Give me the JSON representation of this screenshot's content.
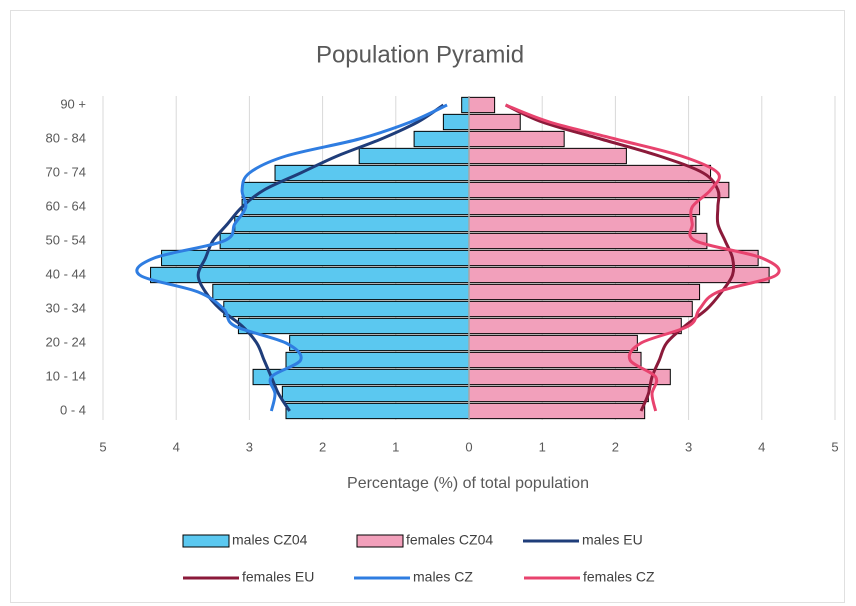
{
  "chart_data": {
    "type": "bar",
    "orientation": "horizontal",
    "title": "Population Pyramid",
    "xlabel": "Percentage (%) of total population",
    "categories": [
      "0 - 4",
      null,
      "10 - 14",
      null,
      "20 - 24",
      null,
      "30 - 34",
      null,
      "40 - 44",
      null,
      "50 - 54",
      null,
      "60 - 64",
      null,
      "70 - 74",
      null,
      "80 - 84",
      null,
      "90 +"
    ],
    "xlim": [
      -5,
      5
    ],
    "xticks": [
      {
        "value": -5,
        "label": "5"
      },
      {
        "value": -4,
        "label": "4"
      },
      {
        "value": -3,
        "label": "3"
      },
      {
        "value": -2,
        "label": "2"
      },
      {
        "value": -1,
        "label": "1"
      },
      0,
      1,
      2,
      3,
      4,
      5
    ],
    "grid": true,
    "legend": "bottom",
    "series": [
      {
        "name": "males CZ04",
        "type": "bar",
        "color": "#5bc8f0",
        "edgecolor": "#000000",
        "values": [
          -2.5,
          -2.55,
          -2.95,
          -2.5,
          -2.45,
          -3.15,
          -3.35,
          -3.5,
          -4.35,
          -4.2,
          -3.4,
          -3.2,
          -3.1,
          -3.1,
          -2.65,
          -1.5,
          -0.75,
          -0.35,
          -0.1
        ]
      },
      {
        "name": "females CZ04",
        "type": "bar",
        "color": "#f2a0bb",
        "edgecolor": "#000000",
        "values": [
          2.4,
          2.45,
          2.75,
          2.35,
          2.3,
          2.9,
          3.05,
          3.15,
          4.1,
          3.95,
          3.25,
          3.1,
          3.15,
          3.55,
          3.3,
          2.15,
          1.3,
          0.7,
          0.35
        ]
      },
      {
        "name": "males EU",
        "type": "line",
        "color": "#1f3d7a",
        "values": [
          -2.45,
          -2.6,
          -2.7,
          -2.8,
          -2.9,
          -3.1,
          -3.4,
          -3.6,
          -3.7,
          -3.6,
          -3.5,
          -3.3,
          -3.1,
          -2.8,
          -2.3,
          -1.8,
          -1.2,
          -0.7,
          -0.35
        ]
      },
      {
        "name": "females EU",
        "type": "line",
        "color": "#8b1a3a",
        "values": [
          2.35,
          2.45,
          2.5,
          2.6,
          2.7,
          2.95,
          3.25,
          3.45,
          3.6,
          3.6,
          3.5,
          3.4,
          3.4,
          3.4,
          3.2,
          2.6,
          1.8,
          1.0,
          0.5
        ]
      },
      {
        "name": "males CZ",
        "type": "line",
        "color": "#2f7de1",
        "values": [
          -2.7,
          -2.65,
          -2.7,
          -2.3,
          -2.5,
          -3.2,
          -3.35,
          -3.7,
          -4.5,
          -4.3,
          -3.35,
          -3.2,
          -3.05,
          -3.1,
          -3.0,
          -2.5,
          -1.5,
          -0.8,
          -0.3
        ]
      },
      {
        "name": "females CZ",
        "type": "line",
        "color": "#e8436e",
        "values": [
          2.55,
          2.5,
          2.55,
          2.2,
          2.35,
          3.0,
          3.15,
          3.4,
          4.2,
          4.0,
          3.1,
          3.05,
          3.05,
          3.3,
          3.4,
          2.9,
          2.0,
          1.1,
          0.5
        ]
      }
    ]
  }
}
